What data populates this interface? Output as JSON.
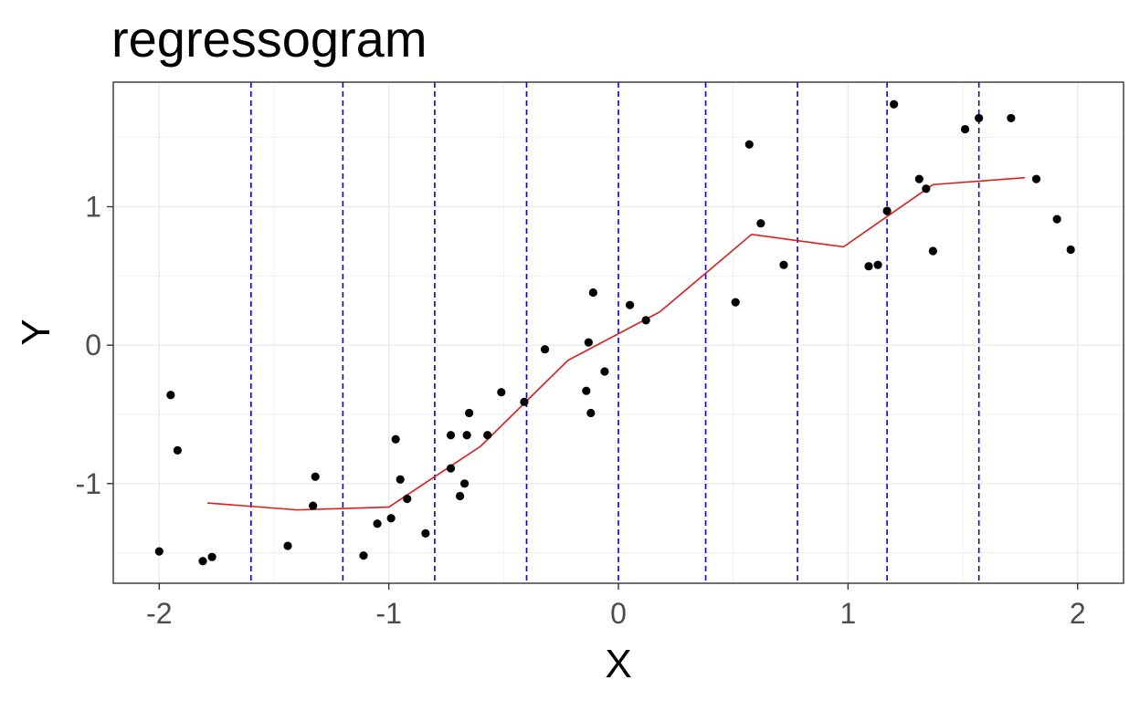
{
  "chart_data": {
    "type": "scatter",
    "title": "regressogram",
    "xlabel": "X",
    "ylabel": "Y",
    "xlim": [
      -2.2,
      2.2
    ],
    "ylim": [
      -1.72,
      1.9
    ],
    "x_ticks": [
      -2,
      -1,
      0,
      1,
      2
    ],
    "x_tick_labels": [
      "-2",
      "-1",
      "0",
      "1",
      "2"
    ],
    "y_ticks": [
      -1,
      0,
      1
    ],
    "y_tick_labels": [
      "-1",
      "0",
      "1"
    ],
    "grid": true,
    "colors": {
      "points": "#000000",
      "fit_line": "#e31a1c",
      "bin_lines": "#0000ff",
      "grid": "#ebebeb",
      "panel_border": "#333333"
    },
    "bin_edges": [
      -1.6,
      -1.2,
      -0.8,
      -0.4,
      0.0,
      0.38,
      0.78,
      1.17,
      1.57
    ],
    "fit_line": {
      "x": [
        -1.79,
        -1.4,
        -1.0,
        -0.6,
        -0.22,
        0.18,
        0.58,
        0.98,
        1.37,
        1.77
      ],
      "y": [
        -1.14,
        -1.19,
        -1.17,
        -0.73,
        -0.11,
        0.24,
        0.8,
        0.71,
        1.16,
        1.21
      ]
    },
    "points": {
      "x": [
        -2.0,
        -1.95,
        -1.92,
        -1.81,
        -1.77,
        -1.44,
        -1.33,
        -1.32,
        -1.11,
        -1.05,
        -0.99,
        -0.97,
        -0.95,
        -0.92,
        -0.84,
        -0.73,
        -0.73,
        -0.69,
        -0.67,
        -0.66,
        -0.65,
        -0.57,
        -0.51,
        -0.41,
        -0.32,
        -0.14,
        -0.13,
        -0.12,
        -0.11,
        -0.06,
        0.05,
        0.12,
        0.51,
        0.57,
        0.62,
        0.72,
        1.09,
        1.13,
        1.17,
        1.2,
        1.31,
        1.34,
        1.37,
        1.51,
        1.57,
        1.71,
        1.82,
        1.91,
        1.97
      ],
      "y": [
        -1.49,
        -0.36,
        -0.76,
        -1.56,
        -1.53,
        -1.45,
        -1.16,
        -0.95,
        -1.52,
        -1.29,
        -1.25,
        -0.68,
        -0.97,
        -1.11,
        -1.36,
        -0.65,
        -0.89,
        -1.09,
        -1.0,
        -0.65,
        -0.49,
        -0.65,
        -0.34,
        -0.41,
        -0.03,
        -0.33,
        0.02,
        -0.49,
        0.38,
        -0.19,
        0.29,
        0.18,
        0.31,
        1.45,
        0.88,
        0.58,
        0.57,
        0.58,
        0.97,
        1.74,
        1.2,
        1.13,
        0.68,
        1.56,
        1.64,
        1.64,
        1.2,
        0.91,
        0.69
      ]
    }
  }
}
